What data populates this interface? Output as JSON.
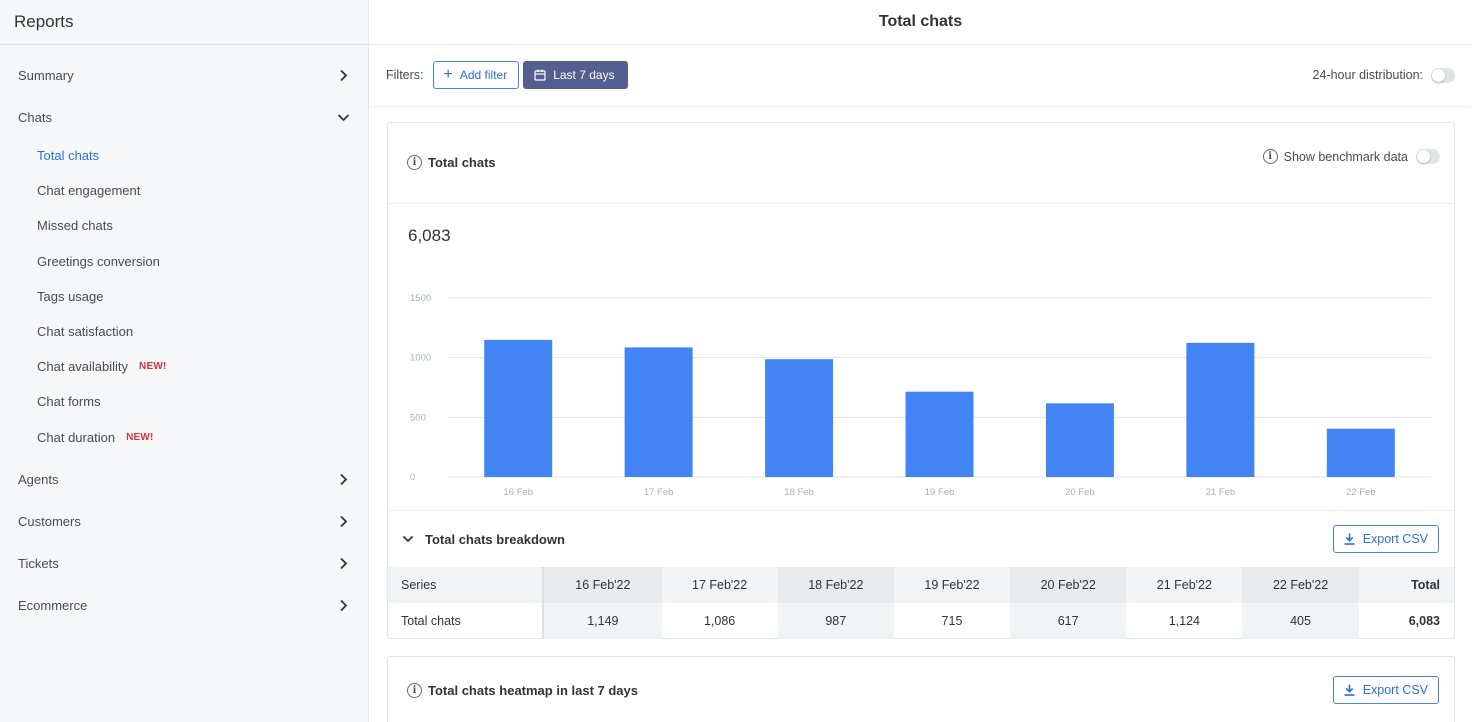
{
  "sidebar": {
    "title": "Reports",
    "items": [
      {
        "label": "Summary",
        "expanded": false
      },
      {
        "label": "Chats",
        "expanded": true
      },
      {
        "label": "Agents",
        "expanded": false
      },
      {
        "label": "Customers",
        "expanded": false
      },
      {
        "label": "Tickets",
        "expanded": false
      },
      {
        "label": "Ecommerce",
        "expanded": false
      }
    ],
    "chats_sub": [
      {
        "label": "Total chats",
        "active": true,
        "badge": ""
      },
      {
        "label": "Chat engagement",
        "active": false,
        "badge": ""
      },
      {
        "label": "Missed chats",
        "active": false,
        "badge": ""
      },
      {
        "label": "Greetings conversion",
        "active": false,
        "badge": ""
      },
      {
        "label": "Tags usage",
        "active": false,
        "badge": ""
      },
      {
        "label": "Chat satisfaction",
        "active": false,
        "badge": ""
      },
      {
        "label": "Chat availability",
        "active": false,
        "badge": "NEW!"
      },
      {
        "label": "Chat forms",
        "active": false,
        "badge": ""
      },
      {
        "label": "Chat duration",
        "active": false,
        "badge": "NEW!"
      }
    ]
  },
  "header": {
    "title": "Total chats"
  },
  "filters": {
    "label": "Filters:",
    "add_filter": "Add filter",
    "date_range": "Last 7 days",
    "distribution_label": "24-hour distribution:",
    "distribution_on": false
  },
  "card": {
    "title": "Total chats",
    "benchmark_label": "Show benchmark data",
    "benchmark_on": false,
    "total": "6,083"
  },
  "chart_data": {
    "type": "bar",
    "categories": [
      "16 Feb",
      "17 Feb",
      "18 Feb",
      "19 Feb",
      "20 Feb",
      "21 Feb",
      "22 Feb"
    ],
    "values": [
      1149,
      1086,
      987,
      715,
      617,
      1124,
      405
    ],
    "yticks": [
      "0",
      "500",
      "1000",
      "1500"
    ],
    "ylim": [
      0,
      1500
    ],
    "bar_color": "#4384f5",
    "grid": true
  },
  "breakdown": {
    "title": "Total chats breakdown",
    "export_label": "Export CSV",
    "headers": [
      "Series",
      "16 Feb'22",
      "17 Feb'22",
      "18 Feb'22",
      "19 Feb'22",
      "20 Feb'22",
      "21 Feb'22",
      "22 Feb'22",
      "Total"
    ],
    "row": [
      "Total chats",
      "1,149",
      "1,086",
      "987",
      "715",
      "617",
      "1,124",
      "405",
      "6,083"
    ]
  },
  "heatmap_card": {
    "title": "Total chats heatmap in last 7 days",
    "export_label": "Export CSV"
  },
  "colors": {
    "accent": "#4384f5",
    "active_link": "#2a6fdc",
    "date_button": "#525f8f",
    "new_badge": "#d6333a"
  }
}
